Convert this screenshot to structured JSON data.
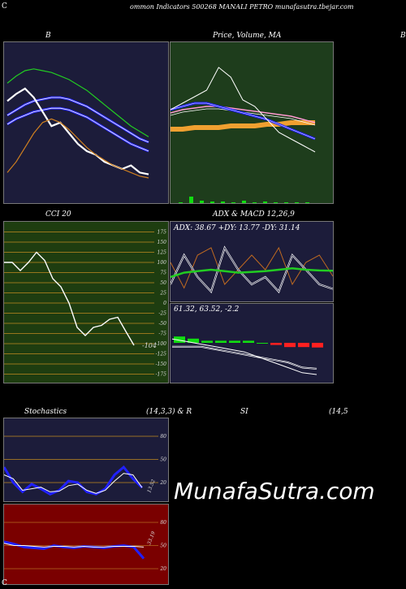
{
  "header": {
    "left_letter": "C",
    "title": "ommon  Indicators 500268  MANALI PETRO munafasutra.tbejar.com"
  },
  "labels": {
    "b": "B",
    "price": "Price,  Volume,  MA",
    "far_right": "B",
    "cci": "CCI 20",
    "adx_macd": "ADX  & MACD 12,26,9",
    "adx_values": "ADX: 38.67  +DY: 13.77 -DY: 31.14",
    "macd_values": "61.32,  63.52,  -2.2",
    "cci_value": "-104",
    "stoch": "Stochastics",
    "stoch_params": "(14,3,3) & R",
    "si": "SI",
    "si_params": "(14,5",
    "stoch_value": "13.52",
    "rsi_value": "33.19",
    "bottom_c": "C",
    "watermark": "MunafaSutra.com"
  },
  "colors": {
    "navy": "#1c1c3a",
    "green_panel": "#1e3d1c",
    "cci_panel": "#1e3d10",
    "red_panel": "#7a0000",
    "blue": "#2020ff",
    "green_line": "#22cc22",
    "orange": "#f0a030"
  },
  "chart_data": [
    {
      "type": "line",
      "panel": "B",
      "series": [
        {
          "values": [
            68,
            72,
            75,
            76,
            75,
            74,
            72,
            70,
            67,
            64,
            60,
            56,
            52,
            48,
            44,
            41,
            38
          ]
        },
        {
          "values": [
            50,
            53,
            56,
            58,
            59,
            60,
            60,
            59,
            57,
            55,
            52,
            49,
            46,
            43,
            40,
            37,
            35
          ]
        },
        {
          "values": [
            45,
            48,
            50,
            52,
            53,
            54,
            54,
            53,
            51,
            49,
            46,
            43,
            40,
            37,
            34,
            32,
            30
          ]
        },
        {
          "values": [
            58,
            62,
            65,
            60,
            52,
            44,
            46,
            40,
            34,
            30,
            28,
            24,
            22,
            20,
            22,
            18,
            17
          ]
        },
        {
          "values": [
            18,
            24,
            32,
            40,
            46,
            48,
            46,
            42,
            37,
            32,
            28,
            25,
            22,
            20,
            18,
            16,
            15
          ]
        }
      ]
    },
    {
      "type": "line",
      "panel": "Price, Volume, MA",
      "series": [
        {
          "values": [
            38,
            40,
            44,
            46,
            44,
            38,
            34,
            30,
            26,
            20,
            16,
            12,
            10
          ]
        },
        {
          "values": [
            36,
            38,
            40,
            40,
            38,
            36,
            34,
            32,
            30,
            27,
            24,
            21,
            18
          ]
        },
        {
          "values": [
            34,
            36,
            37,
            38,
            38,
            37,
            36,
            35,
            34,
            33,
            32,
            30,
            28
          ]
        },
        {
          "values": [
            24,
            24,
            25,
            25,
            25,
            26,
            26,
            26,
            27,
            27,
            28,
            28,
            28
          ]
        },
        {
          "values": [
            36,
            40,
            44,
            48,
            62,
            56,
            42,
            38,
            30,
            22,
            18,
            14,
            10
          ]
        }
      ],
      "volume": [
        1,
        8,
        3,
        2,
        2,
        1,
        3,
        1,
        2,
        1,
        1,
        1,
        1
      ]
    },
    {
      "type": "line",
      "panel": "CCI 20",
      "yticks": [
        175,
        150,
        125,
        100,
        75,
        50,
        25,
        0,
        -25,
        -50,
        -75,
        -100,
        -125,
        -150,
        -175
      ],
      "values": [
        100,
        100,
        80,
        100,
        125,
        105,
        60,
        40,
        0,
        -60,
        -80,
        -60,
        -55,
        -40,
        -35,
        -70,
        -104
      ]
    },
    {
      "type": "line",
      "panel": "ADX",
      "series": [
        {
          "name": "ADX",
          "values": [
            30,
            36,
            38,
            40,
            38,
            36,
            37,
            38,
            40,
            42,
            40,
            39,
            38.67
          ]
        },
        {
          "name": "+DY",
          "values": [
            20,
            60,
            30,
            10,
            70,
            40,
            20,
            30,
            10,
            60,
            40,
            20,
            13.77
          ]
        },
        {
          "name": "-DY",
          "values": [
            50,
            15,
            60,
            70,
            20,
            40,
            60,
            40,
            70,
            20,
            50,
            60,
            31.14
          ]
        }
      ]
    },
    {
      "type": "bar",
      "panel": "MACD",
      "macd": [
        75,
        74,
        73,
        72,
        71,
        70,
        68,
        66,
        64,
        62,
        61.32
      ],
      "signal": [
        72,
        72,
        72,
        71,
        70,
        69,
        68,
        67,
        66,
        64,
        63.52
      ],
      "histogram": [
        3,
        2,
        1,
        1,
        1,
        1,
        0,
        -1,
        -2,
        -2,
        -2.2
      ]
    },
    {
      "type": "line",
      "panel": "Stochastics",
      "yticks": [
        80,
        50,
        20
      ],
      "series": [
        {
          "values": [
            40,
            20,
            8,
            18,
            12,
            5,
            10,
            22,
            20,
            8,
            5,
            12,
            30,
            40,
            25,
            13.52
          ]
        },
        {
          "values": [
            30,
            25,
            10,
            12,
            14,
            8,
            9,
            16,
            18,
            10,
            6,
            10,
            22,
            32,
            30,
            13.52
          ]
        }
      ]
    },
    {
      "type": "line",
      "panel": "RSI",
      "yticks": [
        80,
        50,
        20
      ],
      "series": [
        {
          "values": [
            55,
            52,
            48,
            47,
            46,
            50,
            48,
            47,
            49,
            48,
            47,
            49,
            50,
            48,
            33.19
          ]
        },
        {
          "values": [
            53,
            50,
            50,
            49,
            48,
            49,
            49,
            48,
            49,
            48,
            48,
            49,
            49,
            49,
            48
          ]
        }
      ]
    }
  ]
}
